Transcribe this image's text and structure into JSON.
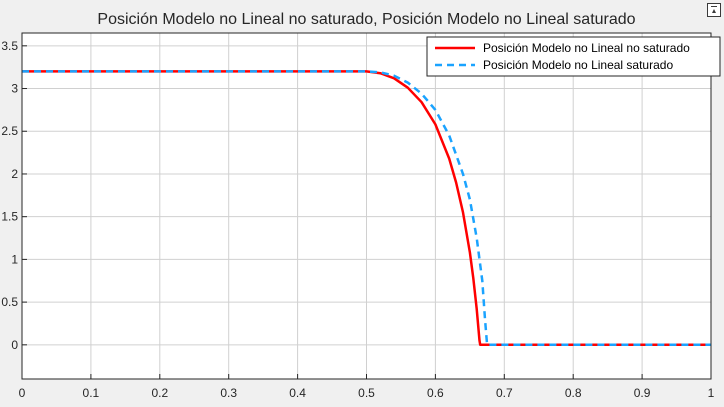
{
  "chart_data": {
    "type": "line",
    "title": "Posición Modelo no Lineal no saturado, Posición Modelo no Lineal saturado",
    "xlabel": "",
    "ylabel": "",
    "xlim": [
      0,
      1
    ],
    "ylim": [
      -0.4,
      3.65
    ],
    "xticks": [
      0,
      0.1,
      0.2,
      0.3,
      0.4,
      0.5,
      0.6,
      0.7,
      0.8,
      0.9,
      1
    ],
    "xtick_labels": [
      "0",
      "0.1",
      "0.2",
      "0.3",
      "0.4",
      "0.5",
      "0.6",
      "0.7",
      "0.8",
      "0.9",
      "1"
    ],
    "yticks": [
      0,
      0.5,
      1,
      1.5,
      2,
      2.5,
      3,
      3.5
    ],
    "ytick_labels": [
      "0",
      "0.5",
      "1",
      "1.5",
      "2",
      "2.5",
      "3",
      "3.5"
    ],
    "grid": true,
    "legend_position": "top-right",
    "background": "#ffffff",
    "series": [
      {
        "name": "Posición Modelo no Lineal no saturado",
        "color": "#ff0000",
        "dash": "solid",
        "x": [
          0,
          0.5,
          0.52,
          0.54,
          0.56,
          0.58,
          0.6,
          0.62,
          0.63,
          0.64,
          0.65,
          0.655,
          0.66,
          0.664,
          0.665,
          0.7,
          0.8,
          0.9,
          1
        ],
        "y": [
          3.2,
          3.2,
          3.18,
          3.12,
          3.01,
          2.84,
          2.58,
          2.18,
          1.9,
          1.55,
          1.08,
          0.78,
          0.42,
          0.05,
          0,
          0,
          0,
          0,
          0
        ]
      },
      {
        "name": "Posición Modelo no Lineal saturado",
        "color": "#1aa3ff",
        "dash": "dashed",
        "x": [
          0,
          0.5,
          0.52,
          0.54,
          0.56,
          0.58,
          0.6,
          0.62,
          0.64,
          0.65,
          0.66,
          0.668,
          0.672,
          0.675,
          0.7,
          0.8,
          0.9,
          1
        ],
        "y": [
          3.2,
          3.2,
          3.19,
          3.15,
          3.07,
          2.94,
          2.75,
          2.45,
          2.0,
          1.7,
          1.25,
          0.75,
          0.3,
          0,
          0,
          0,
          0,
          0
        ]
      }
    ]
  },
  "toolbar": {
    "icon": "restore-view-icon"
  }
}
